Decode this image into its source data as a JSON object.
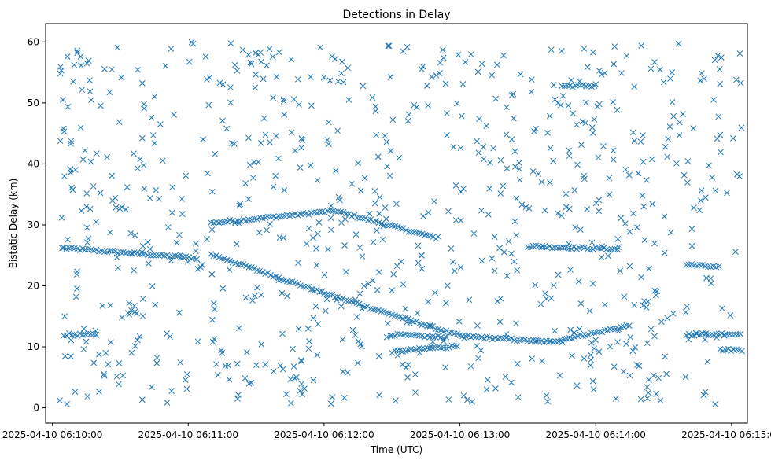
{
  "chart_data": {
    "type": "scatter",
    "title": "Detections in Delay",
    "xlabel": "Time (UTC)",
    "ylabel": "Bistatic Delay (km)",
    "marker": "x",
    "color": "#1f77b4",
    "grid": false,
    "legend": "none",
    "xlim": [
      "2025-04-10 06:09:57",
      "2025-04-10 06:15:07"
    ],
    "ylim": [
      -2.5,
      63
    ],
    "xticks": [
      "2025-04-10 06:10:00",
      "2025-04-10 06:11:00",
      "2025-04-10 06:12:00",
      "2025-04-10 06:13:00",
      "2025-04-10 06:14:00",
      "2025-04-10 06:15:00"
    ],
    "yticks": [
      0,
      10,
      20,
      30,
      40,
      50,
      60
    ],
    "tracks": [
      {
        "x": [
          "2025-04-10 06:10:05",
          "2025-04-10 06:11:05"
        ],
        "y": [
          26.2,
          24.5
        ]
      },
      {
        "x": [
          "2025-04-10 06:11:10",
          "2025-04-10 06:12:05"
        ],
        "y": [
          30.3,
          32.3
        ]
      },
      {
        "x": [
          "2025-04-10 06:12:05",
          "2025-04-10 06:12:50"
        ],
        "y": [
          32.3,
          27.8
        ]
      },
      {
        "x": [
          "2025-04-10 06:11:10",
          "2025-04-10 06:12:00"
        ],
        "y": [
          25.2,
          18.8
        ]
      },
      {
        "x": [
          "2025-04-10 06:12:00",
          "2025-04-10 06:13:00"
        ],
        "y": [
          18.8,
          11.8
        ]
      },
      {
        "x": [
          "2025-04-10 06:13:00",
          "2025-04-10 06:13:40"
        ],
        "y": [
          11.8,
          10.8
        ]
      },
      {
        "x": [
          "2025-04-10 06:13:40",
          "2025-04-10 06:14:15"
        ],
        "y": [
          10.8,
          13.5
        ]
      },
      {
        "x": [
          "2025-04-10 06:12:30",
          "2025-04-10 06:13:00"
        ],
        "y": [
          9.2,
          10.2
        ]
      },
      {
        "x": [
          "2025-04-10 06:12:30",
          "2025-04-10 06:12:55"
        ],
        "y": [
          12.0,
          11.5
        ]
      },
      {
        "x": [
          "2025-04-10 06:10:05",
          "2025-04-10 06:10:20"
        ],
        "y": [
          12.0,
          12.0
        ]
      },
      {
        "x": [
          "2025-04-10 06:14:40",
          "2025-04-10 06:15:05"
        ],
        "y": [
          12.0,
          12.2
        ]
      },
      {
        "x": [
          "2025-04-10 06:14:55",
          "2025-04-10 06:15:05"
        ],
        "y": [
          9.5,
          9.5
        ]
      },
      {
        "x": [
          "2025-04-10 06:13:30",
          "2025-04-10 06:14:10"
        ],
        "y": [
          26.5,
          26.0
        ]
      },
      {
        "x": [
          "2025-04-10 06:13:45",
          "2025-04-10 06:14:00"
        ],
        "y": [
          52.8,
          52.8
        ]
      },
      {
        "x": [
          "2025-04-10 06:14:40",
          "2025-04-10 06:14:55"
        ],
        "y": [
          23.5,
          23.0
        ]
      }
    ],
    "clutter": {
      "count": 820,
      "x_range": [
        "2025-04-10 06:10:03",
        "2025-04-10 06:15:05"
      ],
      "y_range": [
        0.5,
        60
      ]
    }
  }
}
